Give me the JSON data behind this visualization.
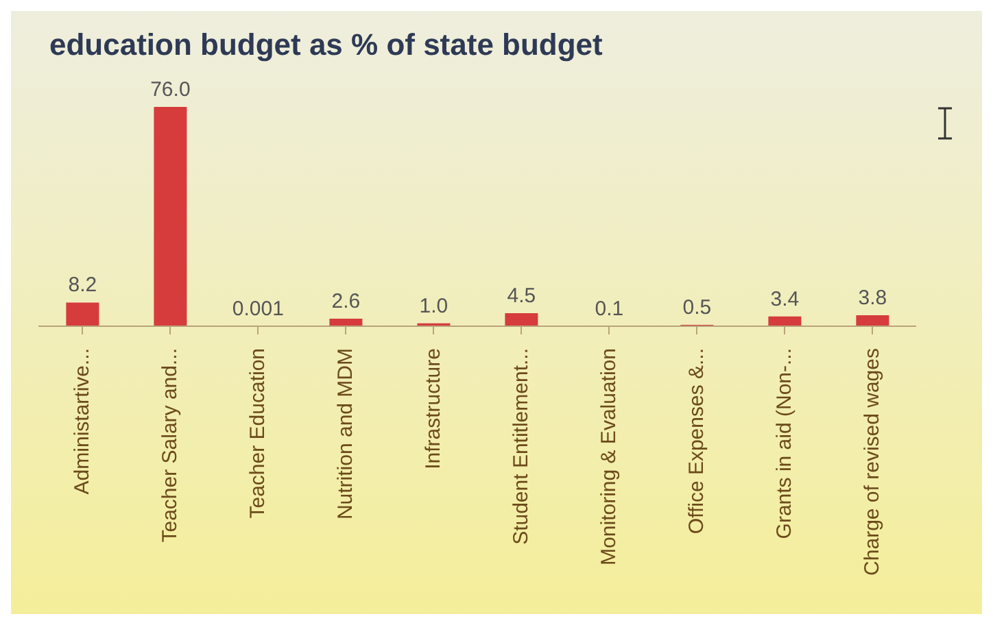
{
  "chart_data": {
    "type": "bar",
    "title": "education budget as % of state budget",
    "categories": [
      "Administartive...",
      "Teacher Salary and...",
      "Teacher Education",
      "Nutrition and MDM",
      "Infrastructure",
      "Student Entitlement...",
      "Monitoring & Evaluation",
      "Office Expenses &...",
      "Grants in aid (Non-...",
      "Charge of revised wages"
    ],
    "values": [
      8.2,
      76.0,
      0.001,
      2.6,
      1.0,
      4.5,
      0.1,
      0.5,
      3.4,
      3.8
    ],
    "value_labels": [
      "8.2",
      "76.0",
      "0.001",
      "2.6",
      "1.0",
      "4.5",
      "0.1",
      "0.5",
      "3.4",
      "3.8"
    ],
    "color": "#d63c3c"
  }
}
